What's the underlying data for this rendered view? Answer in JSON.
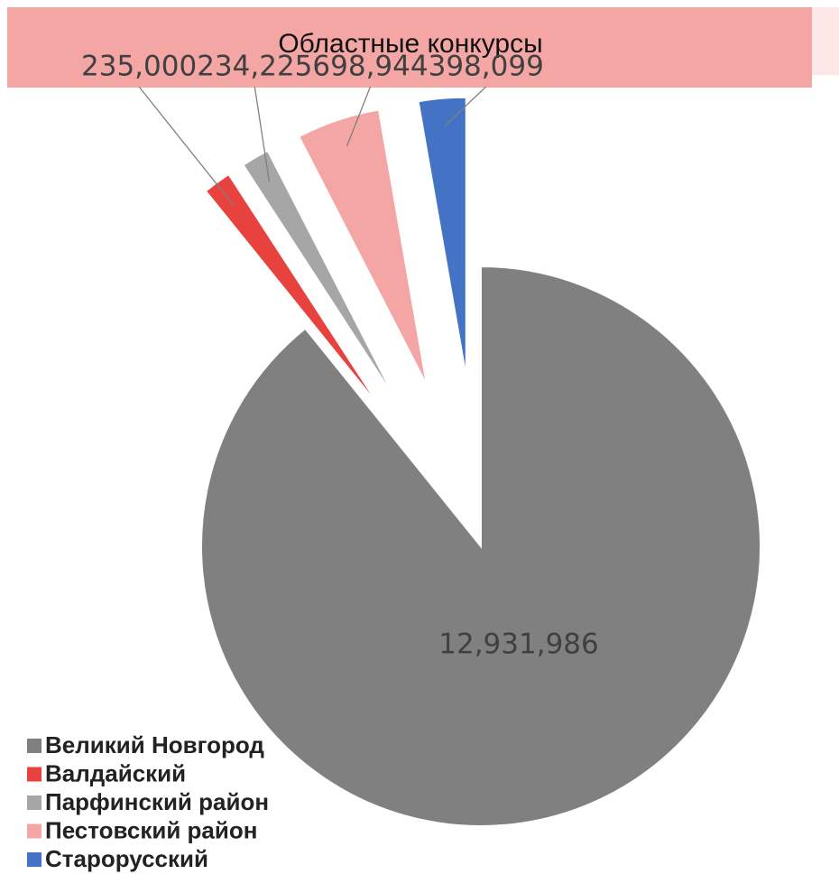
{
  "chart_data": {
    "type": "pie",
    "title": "Областные конкурсы",
    "categories": [
      "Великий Новгород",
      "Валдайский",
      "Парфинский район",
      "Пестовский район",
      "Старорусский"
    ],
    "values": [
      12931986,
      235000,
      234225,
      698944,
      398099
    ],
    "value_labels": [
      "12,931,986",
      "235,000",
      "234,225",
      "698,944",
      "398,099"
    ],
    "colors": [
      "#808080",
      "#e8423f",
      "#a6a6a6",
      "#f4a6a4",
      "#4472c4"
    ],
    "legend": "bottom-left"
  }
}
